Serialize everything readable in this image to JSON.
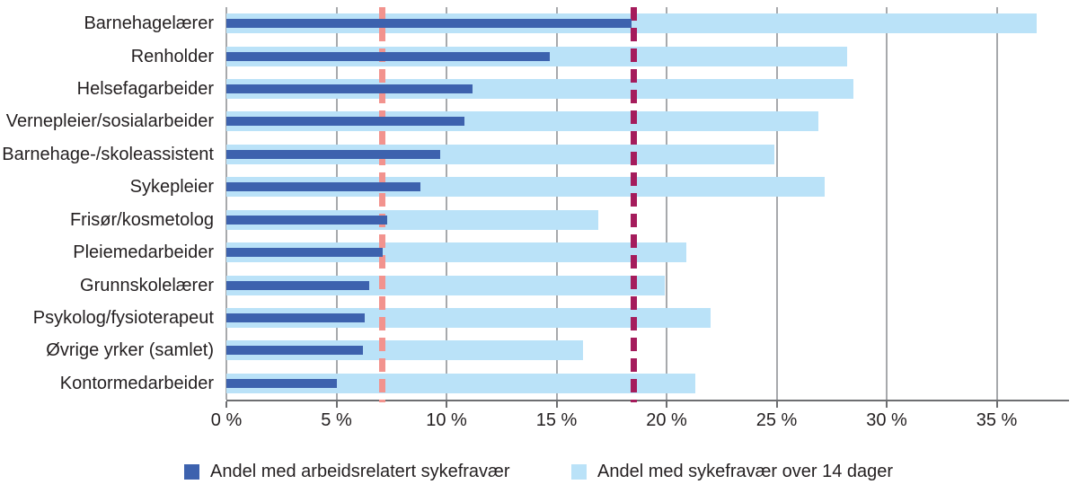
{
  "chart_data": {
    "type": "bar",
    "orientation": "horizontal",
    "title": "",
    "xlabel": "",
    "ylabel": "",
    "xlim": [
      0,
      38
    ],
    "grid": "vertical",
    "legend_position": "bottom",
    "categories": [
      "Barnehagelærer",
      "Renholder",
      "Helsefagarbeider",
      "Vernepleier/sosialarbeider",
      "Barnehage-/skoleassistent",
      "Sykepleier",
      "Frisør/kosmetolog",
      "Pleiemedarbeider",
      "Grunnskolelærer",
      "Psykolog/fysioterapeut",
      "Øvrige yrker (samlet)",
      "Kontormedarbeider"
    ],
    "series": [
      {
        "name": "Andel med arbeidsrelatert sykefravær",
        "color": "#3d62ae",
        "values": [
          18.4,
          14.7,
          11.2,
          10.8,
          9.7,
          8.8,
          7.3,
          7.1,
          6.5,
          6.3,
          6.2,
          5.0
        ]
      },
      {
        "name": "Andel med sykefravær over 14 dager",
        "color": "#bae2f8",
        "values": [
          36.8,
          28.2,
          28.5,
          26.9,
          24.9,
          27.2,
          16.9,
          20.9,
          19.9,
          22.0,
          16.2,
          21.3
        ]
      }
    ],
    "reference_lines": [
      {
        "name": "reference-line-pink",
        "value": 7.1,
        "color": "#f2938e",
        "style": "dashed"
      },
      {
        "name": "reference-line-maroon",
        "value": 18.5,
        "color": "#a51c5c",
        "style": "dashed"
      }
    ],
    "x_ticks": [
      {
        "value": 0,
        "label": "0 %"
      },
      {
        "value": 5,
        "label": "5 %"
      },
      {
        "value": 10,
        "label": "10 %"
      },
      {
        "value": 15,
        "label": "15 %"
      },
      {
        "value": 20,
        "label": "20 %"
      },
      {
        "value": 25,
        "label": "25 %"
      },
      {
        "value": 30,
        "label": "30 %"
      },
      {
        "value": 35,
        "label": "35 %"
      }
    ],
    "colors": {
      "gridline": "#a7a9ac",
      "axis_line": "#6d6e71",
      "text": "#231f20",
      "background": "#ffffff"
    }
  },
  "legend": {
    "items": [
      {
        "label": "Andel med arbeidsrelatert sykefravær",
        "color": "#3d62ae"
      },
      {
        "label": "Andel med sykefravær over 14 dager",
        "color": "#bae2f8"
      }
    ]
  }
}
